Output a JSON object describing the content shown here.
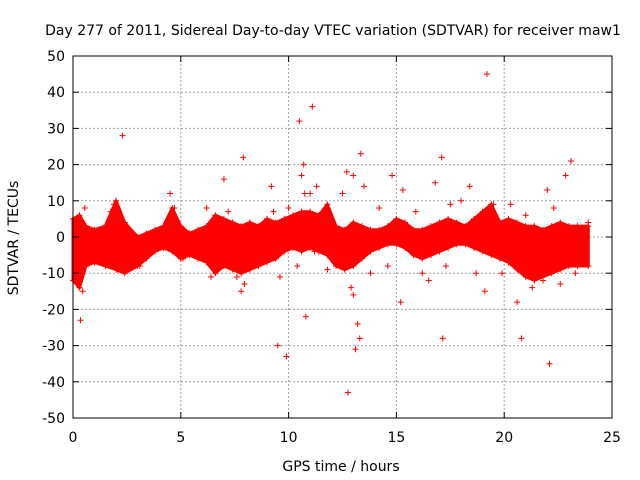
{
  "chart_data": {
    "type": "scatter",
    "title": "Day 277 of 2011, Sidereal Day-to-day VTEC variation (SDTVAR) for receiver maw1",
    "xlabel": "GPS time / hours",
    "ylabel": "SDTVAR / TECUs",
    "xlim": [
      0,
      25
    ],
    "ylim": [
      -50,
      50
    ],
    "xticks": [
      0,
      5,
      10,
      15,
      20,
      25
    ],
    "yticks": [
      -50,
      -40,
      -30,
      -20,
      -10,
      0,
      10,
      20,
      30,
      40,
      50
    ],
    "grid": true,
    "marker": "+",
    "color": "#ff0000",
    "band": {
      "x": [
        0.0,
        0.3,
        0.6,
        1.0,
        1.5,
        2.0,
        2.4,
        3.0,
        3.4,
        3.8,
        4.2,
        4.6,
        5.0,
        5.4,
        5.8,
        6.2,
        6.6,
        7.0,
        7.4,
        7.8,
        8.2,
        8.6,
        9.0,
        9.4,
        9.8,
        10.2,
        10.6,
        11.0,
        11.4,
        11.8,
        12.2,
        12.6,
        13.0,
        13.4,
        13.8,
        14.2,
        14.6,
        15.0,
        15.4,
        15.8,
        16.2,
        16.6,
        17.0,
        17.4,
        17.8,
        18.2,
        18.6,
        19.0,
        19.4,
        19.8,
        20.2,
        20.6,
        21.0,
        21.4,
        21.8,
        22.2,
        22.6,
        23.0,
        23.4,
        23.9
      ],
      "upper": [
        5,
        6,
        3,
        2,
        3,
        10,
        4,
        0,
        1,
        2,
        3,
        8,
        3,
        1,
        2,
        3,
        6,
        5,
        4,
        3,
        4,
        3,
        5,
        4,
        5,
        6,
        7,
        7,
        6,
        9,
        3,
        2,
        4,
        3,
        2,
        2,
        3,
        5,
        4,
        2,
        2,
        3,
        4,
        5,
        4,
        3,
        5,
        7,
        9,
        4,
        5,
        4,
        3,
        3,
        2,
        3,
        4,
        3,
        3,
        3
      ],
      "lower": [
        -12,
        -14,
        -8,
        -7,
        -8,
        -9,
        -10,
        -8,
        -6,
        -4,
        -3,
        -4,
        -6,
        -5,
        -6,
        -7,
        -10,
        -8,
        -9,
        -10,
        -9,
        -8,
        -7,
        -6,
        -4,
        -3,
        -4,
        -3,
        -4,
        -5,
        -8,
        -9,
        -8,
        -6,
        -4,
        -3,
        -2,
        -2,
        -3,
        -5,
        -6,
        -5,
        -4,
        -3,
        -2,
        -2,
        -3,
        -4,
        -5,
        -6,
        -7,
        -9,
        -11,
        -12,
        -11,
        -10,
        -9,
        -8,
        -8,
        -8
      ]
    },
    "outliers": [
      {
        "x": 0.35,
        "y": -23
      },
      {
        "x": 0.45,
        "y": -15
      },
      {
        "x": 0.55,
        "y": 8
      },
      {
        "x": 0.25,
        "y": -13
      },
      {
        "x": 1.75,
        "y": 7
      },
      {
        "x": 1.9,
        "y": 9
      },
      {
        "x": 2.3,
        "y": 28
      },
      {
        "x": 2.05,
        "y": -9
      },
      {
        "x": 3.1,
        "y": -8
      },
      {
        "x": 4.5,
        "y": 12
      },
      {
        "x": 4.7,
        "y": 8
      },
      {
        "x": 5.1,
        "y": -6
      },
      {
        "x": 6.2,
        "y": 8
      },
      {
        "x": 6.4,
        "y": -11
      },
      {
        "x": 7.0,
        "y": 16
      },
      {
        "x": 7.2,
        "y": 7
      },
      {
        "x": 7.6,
        "y": -11
      },
      {
        "x": 7.8,
        "y": -15
      },
      {
        "x": 7.95,
        "y": -13
      },
      {
        "x": 7.9,
        "y": 22
      },
      {
        "x": 8.2,
        "y": 4
      },
      {
        "x": 8.6,
        "y": -8
      },
      {
        "x": 9.2,
        "y": 14
      },
      {
        "x": 9.3,
        "y": 7
      },
      {
        "x": 9.5,
        "y": -30
      },
      {
        "x": 9.9,
        "y": -33
      },
      {
        "x": 9.6,
        "y": -11
      },
      {
        "x": 10.0,
        "y": 8
      },
      {
        "x": 10.5,
        "y": 32
      },
      {
        "x": 10.7,
        "y": 20
      },
      {
        "x": 10.6,
        "y": 17
      },
      {
        "x": 10.75,
        "y": 12
      },
      {
        "x": 10.8,
        "y": -22
      },
      {
        "x": 10.4,
        "y": -8
      },
      {
        "x": 11.1,
        "y": 36
      },
      {
        "x": 11.3,
        "y": 14
      },
      {
        "x": 11.0,
        "y": 12
      },
      {
        "x": 11.2,
        "y": -4
      },
      {
        "x": 11.8,
        "y": -9
      },
      {
        "x": 12.1,
        "y": -7
      },
      {
        "x": 12.5,
        "y": 12
      },
      {
        "x": 12.7,
        "y": 18
      },
      {
        "x": 12.75,
        "y": -43
      },
      {
        "x": 12.9,
        "y": -14
      },
      {
        "x": 13.0,
        "y": -16
      },
      {
        "x": 13.1,
        "y": -31
      },
      {
        "x": 13.2,
        "y": -24
      },
      {
        "x": 13.3,
        "y": -28
      },
      {
        "x": 13.35,
        "y": 23
      },
      {
        "x": 13.0,
        "y": 17
      },
      {
        "x": 13.5,
        "y": 14
      },
      {
        "x": 13.8,
        "y": -10
      },
      {
        "x": 14.2,
        "y": 8
      },
      {
        "x": 14.6,
        "y": -8
      },
      {
        "x": 14.8,
        "y": 17
      },
      {
        "x": 15.2,
        "y": -18
      },
      {
        "x": 15.3,
        "y": 13
      },
      {
        "x": 15.9,
        "y": 7
      },
      {
        "x": 16.2,
        "y": -10
      },
      {
        "x": 16.5,
        "y": -12
      },
      {
        "x": 16.8,
        "y": 15
      },
      {
        "x": 17.1,
        "y": 22
      },
      {
        "x": 17.15,
        "y": -28
      },
      {
        "x": 17.3,
        "y": -8
      },
      {
        "x": 17.5,
        "y": 9
      },
      {
        "x": 18.0,
        "y": 10
      },
      {
        "x": 18.4,
        "y": 14
      },
      {
        "x": 18.7,
        "y": -10
      },
      {
        "x": 19.2,
        "y": 45
      },
      {
        "x": 19.1,
        "y": -15
      },
      {
        "x": 19.5,
        "y": 9
      },
      {
        "x": 19.9,
        "y": -10
      },
      {
        "x": 20.3,
        "y": 9
      },
      {
        "x": 20.6,
        "y": -18
      },
      {
        "x": 20.8,
        "y": -28
      },
      {
        "x": 21.0,
        "y": 6
      },
      {
        "x": 21.3,
        "y": -14
      },
      {
        "x": 21.8,
        "y": -12
      },
      {
        "x": 22.0,
        "y": 13
      },
      {
        "x": 22.1,
        "y": -35
      },
      {
        "x": 22.3,
        "y": 8
      },
      {
        "x": 22.6,
        "y": -13
      },
      {
        "x": 22.85,
        "y": 17
      },
      {
        "x": 23.1,
        "y": 21
      },
      {
        "x": 23.3,
        "y": -10
      },
      {
        "x": 23.6,
        "y": -6
      },
      {
        "x": 23.9,
        "y": 4
      }
    ]
  }
}
